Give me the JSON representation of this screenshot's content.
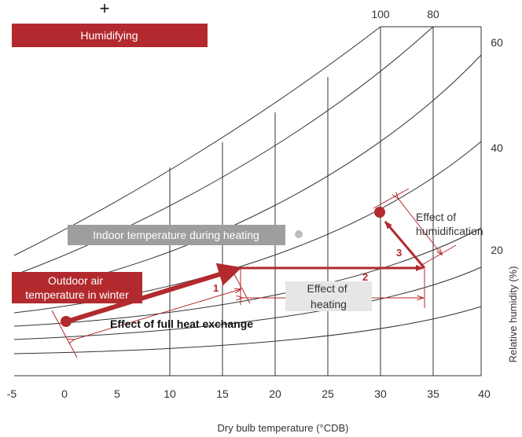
{
  "mode": {
    "symbol": "+",
    "label": "Humidifying"
  },
  "diagram": {
    "x_axis_title": "Dry bulb temperature (°CDB)",
    "y_axis_title": "Relative humidity (%)",
    "x_ticks": [
      "-5",
      "0",
      "5",
      "10",
      "15",
      "20",
      "25",
      "30",
      "35",
      "40"
    ],
    "rh_labels": [
      "100",
      "80",
      "60",
      "40",
      "20"
    ],
    "indoor_label": "Indoor temperature during heating",
    "outdoor_label_line1": "Outdoor air",
    "outdoor_label_line2": "temperature in winter",
    "full_heat_exchange_label": "Effect of full heat exchange",
    "heating_label_line1": "Effect of",
    "heating_label_line2": "heating",
    "humidification_label_line1": "Effect of",
    "humidification_label_line2": "humidification",
    "steps": [
      "1",
      "2",
      "3"
    ]
  },
  "colors": {
    "accent": "#b22a2e",
    "grid": "#333333",
    "indoor_box": "#9e9e9e",
    "heating_box": "#e6e6e6"
  }
}
